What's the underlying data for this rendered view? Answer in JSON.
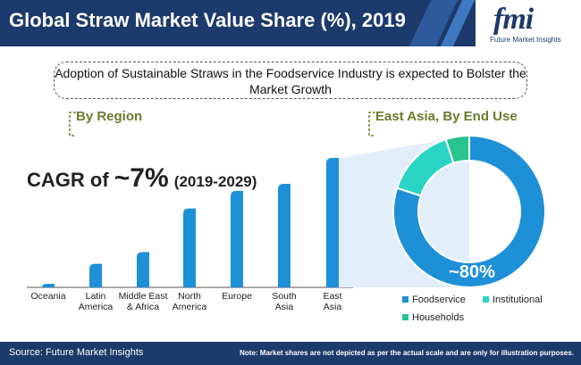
{
  "header": {
    "title": "Global Straw Market Value Share (%), 2019"
  },
  "logo": {
    "name": "fmi",
    "tagline": "Future Market Insights"
  },
  "banner": {
    "text": "Adoption of Sustainable Straws in the Foodservice Industry is expected to Bolster the Market Growth"
  },
  "tags": {
    "region": "By Region",
    "east_asia": "East Asia, By End Use"
  },
  "cagr": {
    "prefix": "CAGR of",
    "value": "~7%",
    "period": "(2019-2029)"
  },
  "footer": {
    "source": "Source: Future Market Insights",
    "note": "Note: Market shares are not depicted as per the actual scale and are only for illustration purposes."
  },
  "colors": {
    "navy": "#1c3a6b",
    "bar_blue": "#1e90d8",
    "teal": "#2ad4c4",
    "green": "#27c48e",
    "tag_olive": "#6b7b2e"
  },
  "chart_data": [
    {
      "type": "bar",
      "title": "By Region",
      "categories": [
        "Oceania",
        "Latin America",
        "Middle East & Africa",
        "North America",
        "Europe",
        "South Asia",
        "East Asia"
      ],
      "category_lines": [
        [
          "Oceania"
        ],
        [
          "Latin",
          "America"
        ],
        [
          "Middle East",
          "& Africa"
        ],
        [
          "North",
          "America"
        ],
        [
          "Europe"
        ],
        [
          "South",
          "Asia"
        ],
        [
          "East",
          "Asia"
        ]
      ],
      "values": [
        3,
        20,
        30,
        67,
        82,
        88,
        110
      ],
      "grid": false,
      "note": "not to scale"
    },
    {
      "type": "pie",
      "title": "East Asia, By End Use",
      "labels": [
        "Foodservice",
        "Institutional",
        "Households"
      ],
      "values": [
        80,
        15,
        5
      ],
      "colors": [
        "#1e90d8",
        "#2ad4c4",
        "#27c48e"
      ],
      "data_label": "~80%",
      "legend": "bottom"
    }
  ]
}
